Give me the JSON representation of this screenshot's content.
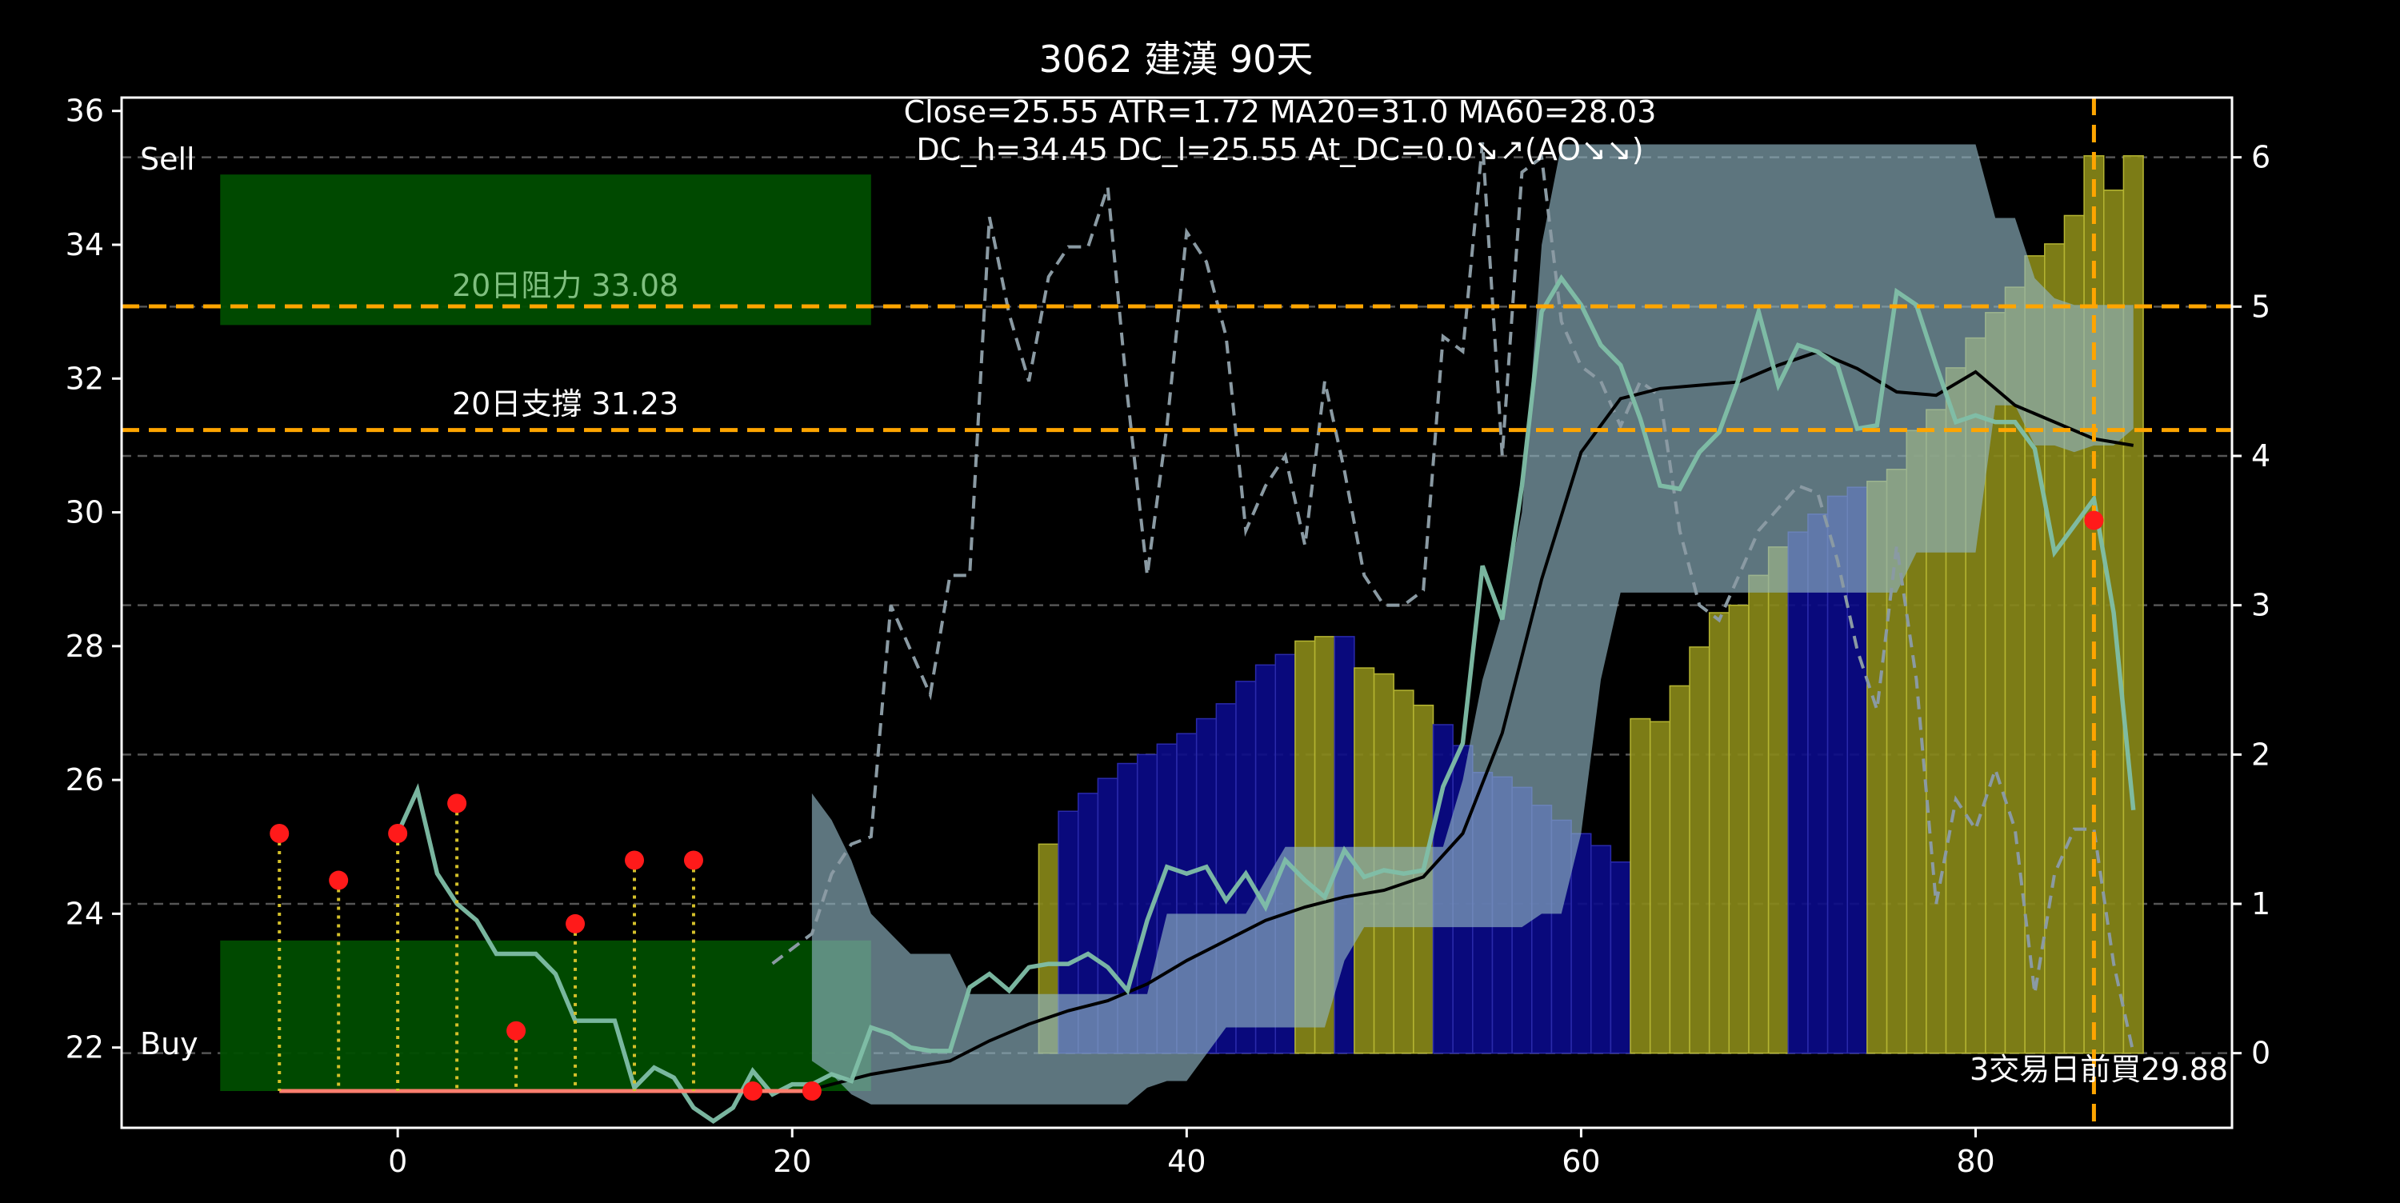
{
  "chart_data": {
    "type": "line",
    "title": "3062 建漢 90天",
    "info_line1": "Close=25.55 ATR=1.72 MA20=31.0 MA60=28.03",
    "info_line2": "DC_h=34.45 DC_l=25.55 At_DC=0.0↘↗(AO↘↘)",
    "xlim": [
      -14,
      93
    ],
    "ylim": [
      20.8,
      36.2
    ],
    "y2lim": [
      -0.5,
      6.4
    ],
    "x_ticks": [
      0,
      20,
      40,
      60,
      80
    ],
    "y_ticks": [
      22,
      24,
      26,
      28,
      30,
      32,
      34,
      36
    ],
    "y2_ticks": [
      0,
      1,
      2,
      3,
      4,
      5,
      6
    ],
    "grid_y2": [
      0,
      1,
      2,
      3,
      4,
      5,
      6
    ],
    "labels": {
      "sell": "Sell",
      "buy": "Buy"
    },
    "resistance": {
      "value": 33.08,
      "label": "20日阻力 33.08"
    },
    "support": {
      "value": 31.23,
      "label": "20日支撐 31.23"
    },
    "vline_x": 86,
    "buy_note": "3交易日前買29.88",
    "zones": [
      {
        "name": "sell-zone",
        "x0": -9,
        "x1": 24,
        "y0": 32.8,
        "y1": 35.05
      },
      {
        "name": "buy-zone",
        "x0": -9,
        "x1": 24,
        "y0": 21.35,
        "y1": 23.6
      }
    ],
    "buy_baseline": {
      "x0": -6,
      "x1": 21,
      "y": 21.35
    },
    "signals": [
      {
        "x": -6,
        "y": 25.2
      },
      {
        "x": -3,
        "y": 24.5
      },
      {
        "x": 0,
        "y": 25.2
      },
      {
        "x": 3,
        "y": 25.65
      },
      {
        "x": 6,
        "y": 22.25
      },
      {
        "x": 9,
        "y": 23.85
      },
      {
        "x": 12,
        "y": 24.8
      },
      {
        "x": 15,
        "y": 24.8
      },
      {
        "x": 18,
        "y": 21.35
      },
      {
        "x": 21,
        "y": 21.35
      },
      {
        "x": 86,
        "y": 29.88
      }
    ],
    "close": {
      "x": [
        0,
        1,
        2,
        3,
        4,
        5,
        6,
        7,
        8,
        9,
        10,
        11,
        12,
        13,
        14,
        15,
        16,
        17,
        18,
        19,
        20,
        21,
        22,
        23,
        24,
        25,
        26,
        27,
        28,
        29,
        30,
        31,
        32,
        33,
        34,
        35,
        36,
        37,
        38,
        39,
        40,
        41,
        42,
        43,
        44,
        45,
        46,
        47,
        48,
        49,
        50,
        51,
        52,
        53,
        54,
        55,
        56,
        57,
        58,
        59,
        60,
        61,
        62,
        63,
        64,
        65,
        66,
        67,
        68,
        69,
        70,
        71,
        72,
        73,
        74,
        75,
        76,
        77,
        78,
        79,
        80,
        81,
        82,
        83,
        84,
        85,
        86,
        87,
        88
      ],
      "y": [
        25.2,
        25.85,
        24.6,
        24.15,
        23.9,
        23.4,
        23.4,
        23.4,
        23.1,
        22.4,
        22.4,
        22.4,
        21.4,
        21.7,
        21.55,
        21.1,
        20.9,
        21.1,
        21.65,
        21.3,
        21.45,
        21.45,
        21.6,
        21.5,
        22.3,
        22.2,
        22.0,
        21.95,
        21.95,
        22.9,
        23.1,
        22.85,
        23.2,
        23.25,
        23.25,
        23.4,
        23.2,
        22.85,
        23.9,
        24.7,
        24.6,
        24.7,
        24.2,
        24.6,
        24.1,
        24.8,
        24.5,
        24.25,
        24.95,
        24.55,
        24.65,
        24.6,
        24.65,
        25.9,
        26.55,
        29.2,
        28.4,
        30.4,
        33.0,
        33.5,
        33.1,
        32.5,
        32.2,
        31.4,
        30.4,
        30.35,
        30.9,
        31.2,
        32.0,
        33.0,
        31.9,
        32.5,
        32.4,
        32.2,
        31.25,
        31.3,
        33.3,
        33.1,
        32.2,
        31.35,
        31.45,
        31.35,
        31.35,
        30.95,
        29.4,
        29.8,
        30.2,
        28.5,
        25.55
      ]
    },
    "ma20": {
      "x": [
        20,
        22,
        24,
        26,
        28,
        30,
        32,
        34,
        36,
        38,
        40,
        42,
        44,
        46,
        48,
        50,
        52,
        54,
        56,
        58,
        60,
        62,
        64,
        66,
        68,
        70,
        72,
        74,
        76,
        78,
        80,
        82,
        84,
        86,
        88
      ],
      "y": [
        21.3,
        21.45,
        21.6,
        21.7,
        21.8,
        22.1,
        22.35,
        22.55,
        22.7,
        22.95,
        23.3,
        23.6,
        23.9,
        24.1,
        24.25,
        24.35,
        24.55,
        25.2,
        26.7,
        29.0,
        30.9,
        31.7,
        31.85,
        31.9,
        31.95,
        32.2,
        32.4,
        32.15,
        31.8,
        31.75,
        32.1,
        31.6,
        31.35,
        31.1,
        31.0
      ]
    },
    "atr_dashed": {
      "x": [
        19,
        20,
        21,
        22,
        23,
        24,
        25,
        26,
        27,
        28,
        29,
        30,
        31,
        32,
        33,
        34,
        35,
        36,
        37,
        38,
        39,
        40,
        41,
        42,
        43,
        44,
        45,
        46,
        47,
        48,
        49,
        50,
        51,
        52,
        53,
        54,
        55,
        56,
        57,
        58,
        59,
        60,
        61,
        62,
        63,
        64,
        65,
        66,
        67,
        68,
        69,
        70,
        71,
        72,
        73,
        74,
        75,
        76,
        77,
        78,
        79,
        80,
        81,
        82,
        83,
        84,
        85,
        86,
        87,
        88
      ],
      "y": [
        0.6,
        0.7,
        0.8,
        1.2,
        1.4,
        1.45,
        3.0,
        2.7,
        2.4,
        3.2,
        3.2,
        5.6,
        4.95,
        4.5,
        5.2,
        5.4,
        5.4,
        5.8,
        4.4,
        3.2,
        4.2,
        5.5,
        5.3,
        4.8,
        3.5,
        3.8,
        4.0,
        3.4,
        4.5,
        3.9,
        3.2,
        3.0,
        3.0,
        3.1,
        4.8,
        4.7,
        6.1,
        4.0,
        5.9,
        6.0,
        4.9,
        4.6,
        4.5,
        4.2,
        4.5,
        4.4,
        3.5,
        3.0,
        2.9,
        3.2,
        3.5,
        3.65,
        3.8,
        3.75,
        3.3,
        2.7,
        2.3,
        3.4,
        2.5,
        1.0,
        1.7,
        1.5,
        1.9,
        1.5,
        0.4,
        1.2,
        1.5,
        1.5,
        0.6,
        0.0
      ]
    },
    "channel": {
      "x": [
        21,
        22,
        23,
        24,
        25,
        26,
        27,
        28,
        29,
        30,
        31,
        32,
        33,
        34,
        35,
        36,
        37,
        38,
        39,
        40,
        41,
        42,
        43,
        44,
        45,
        46,
        47,
        48,
        49,
        50,
        51,
        52,
        53,
        54,
        55,
        56,
        57,
        58,
        59,
        60,
        61,
        62,
        63,
        64,
        65,
        66,
        67,
        68,
        69,
        70,
        71,
        72,
        73,
        74,
        75,
        76,
        77,
        78,
        79,
        80,
        81,
        82,
        83,
        84,
        85,
        86,
        87,
        88
      ],
      "upper": [
        25.8,
        25.4,
        24.8,
        24.0,
        23.7,
        23.4,
        23.4,
        23.4,
        22.8,
        22.8,
        22.8,
        22.8,
        22.8,
        22.8,
        22.8,
        22.8,
        22.8,
        22.8,
        24.0,
        24.0,
        24.0,
        24.0,
        24.0,
        24.5,
        25.0,
        25.0,
        25.0,
        25.0,
        25.0,
        25.0,
        25.0,
        25.0,
        25.0,
        26.0,
        27.5,
        28.5,
        30.0,
        34.0,
        35.5,
        35.5,
        35.5,
        35.5,
        35.5,
        35.5,
        35.5,
        35.5,
        35.5,
        35.5,
        35.5,
        35.5,
        35.5,
        35.5,
        35.5,
        35.5,
        35.5,
        35.5,
        35.5,
        35.5,
        35.5,
        35.5,
        34.4,
        34.4,
        33.5,
        33.2,
        33.1,
        33.1,
        33.1,
        33.1
      ],
      "lower": [
        21.8,
        21.6,
        21.3,
        21.15,
        21.15,
        21.15,
        21.15,
        21.15,
        21.15,
        21.15,
        21.15,
        21.15,
        21.15,
        21.15,
        21.15,
        21.15,
        21.15,
        21.4,
        21.5,
        21.5,
        21.9,
        22.3,
        22.3,
        22.3,
        22.3,
        22.3,
        22.3,
        23.3,
        23.8,
        23.8,
        23.8,
        23.8,
        23.8,
        23.8,
        23.8,
        23.8,
        23.8,
        24.0,
        24.0,
        25.2,
        27.5,
        28.8,
        28.8,
        28.8,
        28.8,
        28.8,
        28.8,
        28.8,
        28.8,
        28.8,
        28.8,
        28.8,
        28.8,
        28.8,
        28.8,
        28.8,
        29.4,
        29.4,
        29.4,
        29.4,
        31.6,
        31.6,
        31.0,
        31.0,
        30.9,
        31.0,
        31.0,
        31.25
      ]
    },
    "histogram": {
      "x": [
        33,
        34,
        35,
        36,
        37,
        38,
        39,
        40,
        41,
        42,
        43,
        44,
        45,
        46,
        47,
        48,
        49,
        50,
        51,
        52,
        53,
        54,
        55,
        56,
        57,
        58,
        59,
        60,
        61,
        62,
        63,
        64,
        65,
        66,
        67,
        68,
        69,
        70,
        71,
        72,
        73,
        74,
        75,
        76,
        77,
        78,
        79,
        80,
        81,
        82,
        83,
        84,
        85,
        86,
        87,
        88
      ],
      "y": [
        1.4,
        1.62,
        1.74,
        1.84,
        1.94,
        2.0,
        2.07,
        2.14,
        2.24,
        2.34,
        2.49,
        2.6,
        2.67,
        2.76,
        2.79,
        2.79,
        2.58,
        2.54,
        2.43,
        2.33,
        2.2,
        2.06,
        1.88,
        1.85,
        1.78,
        1.66,
        1.56,
        1.47,
        1.39,
        1.28,
        2.24,
        2.22,
        2.46,
        2.72,
        2.95,
        3.0,
        3.2,
        3.39,
        3.49,
        3.61,
        3.73,
        3.79,
        3.83,
        3.91,
        4.17,
        4.31,
        4.59,
        4.79,
        4.96,
        5.13,
        5.34,
        5.42,
        5.61,
        6.01,
        5.78,
        6.01
      ],
      "color": [
        "yellow",
        "blue",
        "blue",
        "blue",
        "blue",
        "blue",
        "blue",
        "blue",
        "blue",
        "blue",
        "blue",
        "blue",
        "blue",
        "yellow",
        "yellow",
        "blue",
        "yellow",
        "yellow",
        "yellow",
        "yellow",
        "blue",
        "blue",
        "blue",
        "blue",
        "blue",
        "blue",
        "blue",
        "blue",
        "blue",
        "blue",
        "yellow",
        "yellow",
        "yellow",
        "yellow",
        "yellow",
        "yellow",
        "yellow",
        "yellow",
        "blue",
        "blue",
        "blue",
        "blue",
        "yellow",
        "yellow",
        "yellow",
        "yellow",
        "yellow",
        "yellow",
        "yellow",
        "yellow",
        "yellow",
        "yellow",
        "yellow",
        "yellow",
        "yellow",
        "yellow"
      ]
    },
    "colors": {
      "background": "#000000",
      "close_line": "#7fbfa8",
      "ma20_line": "#000000",
      "atr_line": "#8a9aa3",
      "channel_fill": "#8fb3c2",
      "zone_fill": "#004d00",
      "level_line": "#ffa500",
      "signal_dot": "#ff1a1a",
      "signal_stem": "#d4c02a",
      "baseline": "#ff7f6e",
      "bar_yellow": "#8a8a18",
      "bar_blue": "#0a0a8a"
    }
  }
}
